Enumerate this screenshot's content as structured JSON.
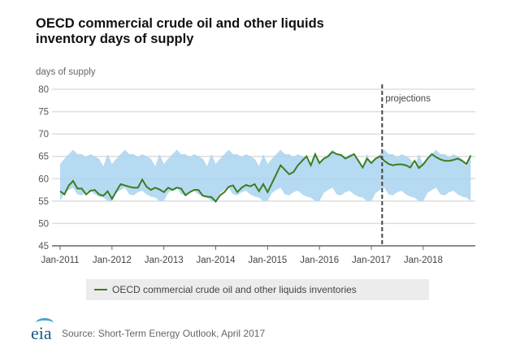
{
  "title": "OECD commercial crude oil and other liquids inventory days of supply",
  "title_lines": [
    "OECD commercial crude oil and other liquids",
    "inventory days of supply"
  ],
  "footer": {
    "logo": "eia",
    "source": "Source: Short-Term Energy Outlook, April 2017"
  },
  "chart_data": {
    "type": "line",
    "title": "OECD commercial crude oil and other liquids inventory days of supply",
    "ylabel": "days of supply",
    "xlabel": "",
    "ylim": [
      45,
      80
    ],
    "yticks": [
      80,
      75,
      70,
      65,
      60,
      55,
      50,
      45
    ],
    "xticks": [
      "Jan-2011",
      "Jan-2012",
      "Jan-2013",
      "Jan-2014",
      "Jan-2015",
      "Jan-2016",
      "Jan-2017",
      "Jan-2018"
    ],
    "x_start": "Jan-2011",
    "x_frequency": "monthly",
    "grid": true,
    "annotation": {
      "label": "projections",
      "at": "Mar-2017"
    },
    "legend": {
      "position": "bottom",
      "entries": [
        "OECD commercial crude oil and other liquids inventories"
      ]
    },
    "colors": {
      "line": "#3a7d22",
      "band": "#a9d4ee",
      "divider": "#444444"
    },
    "series": [
      {
        "name": "OECD commercial crude oil and other liquids inventories",
        "values": [
          57.2,
          56.5,
          58.5,
          59.5,
          57.8,
          57.8,
          56.5,
          57.3,
          57.5,
          56.5,
          56.2,
          57.2,
          55.5,
          57.2,
          58.8,
          58.5,
          58.2,
          58,
          58,
          59.8,
          58.2,
          57.5,
          58,
          57.6,
          57,
          58,
          57.5,
          58,
          57.8,
          56.3,
          57,
          57.5,
          57.5,
          56.2,
          56,
          55.9,
          54.9,
          56.3,
          57,
          58.2,
          58.5,
          57,
          58,
          58.6,
          58.3,
          58.8,
          57.2,
          58.8,
          57,
          59,
          61,
          63,
          62,
          61,
          61.5,
          63,
          64,
          65,
          63,
          65.5,
          63.5,
          64.5,
          65,
          66,
          65.5,
          65.3,
          64.5,
          65,
          65.5,
          64,
          62.5,
          64.5,
          63.5,
          64.5,
          65,
          64,
          63.3,
          63,
          63.2,
          63.2,
          63,
          62.5,
          64,
          62.4,
          63.2,
          64.5,
          65.5,
          64.8,
          64.3,
          64,
          64,
          64.2,
          64.5,
          64,
          63.3,
          65.2
        ]
      }
    ],
    "range_band": {
      "name": "historical range (repeats each year, Jan-Dec)",
      "upper": [
        63.3,
        64.5,
        65.5,
        66.5,
        65.5,
        65.5,
        64.8,
        65.5,
        65,
        64.5,
        62.8,
        65.5
      ],
      "lower": [
        55,
        56.8,
        57.5,
        58,
        56.5,
        56.3,
        57,
        57.3,
        56.5,
        56,
        55.8,
        55
      ]
    }
  }
}
